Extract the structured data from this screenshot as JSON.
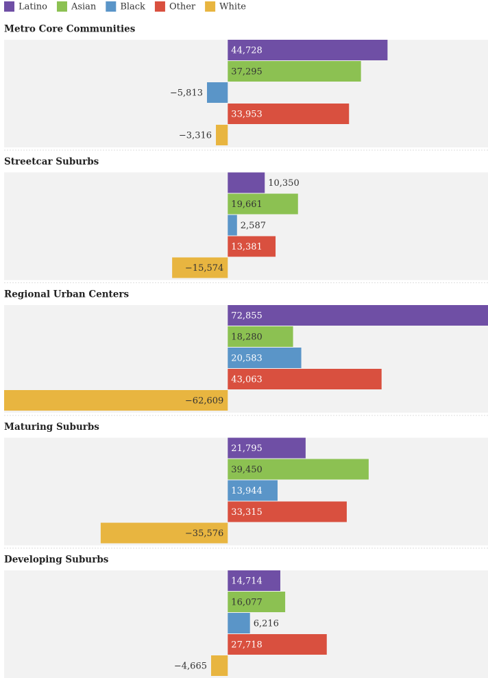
{
  "chart_data": {
    "type": "bar",
    "orientation": "horizontal",
    "categories": [
      "Metro Core Communities",
      "Streetcar Suburbs",
      "Regional Urban Centers",
      "Maturing Suburbs",
      "Developing Suburbs"
    ],
    "series": [
      {
        "name": "Latino",
        "color": "#6f4fa5",
        "values": [
          44728,
          10350,
          72855,
          21795,
          14714
        ],
        "value_labels": [
          "44,728",
          "10,350",
          "72,855",
          "21,795",
          "14,714"
        ]
      },
      {
        "name": "Asian",
        "color": "#8cc152",
        "values": [
          37295,
          19661,
          18280,
          39450,
          16077
        ],
        "value_labels": [
          "37,295",
          "19,661",
          "18,280",
          "39,450",
          "16,077"
        ]
      },
      {
        "name": "Black",
        "color": "#5a95c8",
        "values": [
          -5813,
          2587,
          20583,
          13944,
          6216
        ],
        "value_labels": [
          "−5,813",
          "2,587",
          "20,583",
          "13,944",
          "6,216"
        ]
      },
      {
        "name": "Other",
        "color": "#d9503f",
        "values": [
          33953,
          13381,
          43063,
          33315,
          27718
        ],
        "value_labels": [
          "33,953",
          "13,381",
          "43,063",
          "33,315",
          "27,718"
        ]
      },
      {
        "name": "White",
        "color": "#e8b540",
        "values": [
          -3316,
          -15574,
          -62609,
          -35576,
          -4665
        ],
        "value_labels": [
          "−3,316",
          "−15,574",
          "−62,609",
          "−35,576",
          "−4,665"
        ]
      }
    ]
  }
}
